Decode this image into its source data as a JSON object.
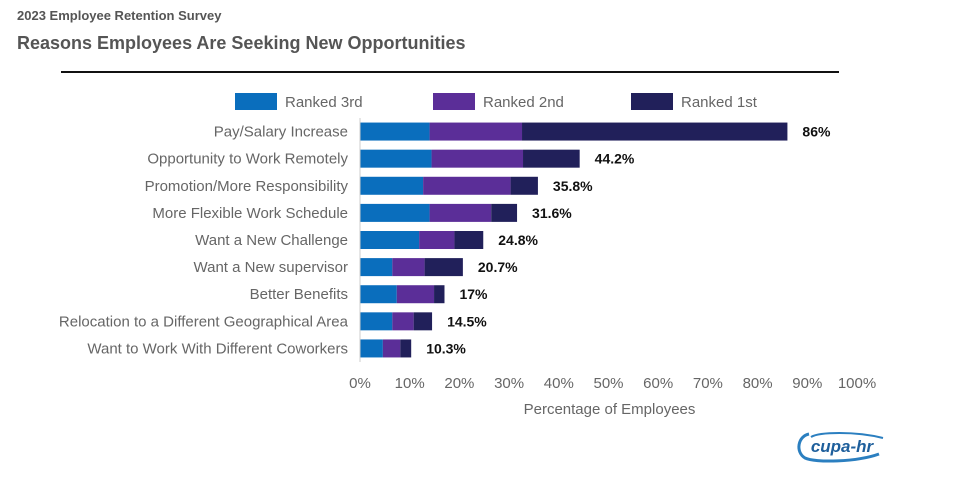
{
  "header": {
    "supertitle": "2023 Employee Retention Survey",
    "title": "Reasons Employees Are Seeking New Opportunities"
  },
  "logo": {
    "text": "cupa-hr",
    "icon": "cupa-hr-logo"
  },
  "colors": {
    "ranked3": "#0a6ebd",
    "ranked2": "#5b2e98",
    "ranked1": "#21205a",
    "axis": "#666666",
    "grid": "#e6e6e6"
  },
  "chart_data": {
    "type": "bar",
    "orientation": "horizontal",
    "stacked": true,
    "title": "Reasons Employees Are Seeking New Opportunities",
    "xlabel": "Percentage of Employees",
    "ylabel": "",
    "xlim": [
      0,
      100
    ],
    "x_ticks": [
      "0%",
      "10%",
      "20%",
      "30%",
      "40%",
      "50%",
      "60%",
      "70%",
      "80%",
      "90%",
      "100%"
    ],
    "legend_position": "top",
    "grid": false,
    "categories": [
      "Pay/Salary Increase",
      "Opportunity to Work Remotely",
      "Promotion/More Responsibility",
      "More Flexible Work Schedule",
      "Want a New Challenge",
      "Want a New supervisor",
      "Better Benefits",
      "Relocation to a Different Geographical Area",
      "Want to Work With Different Coworkers"
    ],
    "series": [
      {
        "name": "Ranked 3rd",
        "color": "#0a6ebd",
        "values": [
          14,
          14.4,
          12.7,
          14,
          11.9,
          6.5,
          7.4,
          6.5,
          4.6
        ]
      },
      {
        "name": "Ranked 2nd",
        "color": "#5b2e98",
        "values": [
          18.6,
          18.4,
          17.6,
          12.4,
          7.1,
          6.5,
          7.5,
          4.3,
          3.5
        ]
      },
      {
        "name": "Ranked 1st",
        "color": "#21205a",
        "values": [
          53.4,
          11.4,
          5.5,
          5.2,
          5.8,
          7.7,
          2.1,
          3.7,
          2.2
        ]
      }
    ],
    "totals": [
      86,
      44.2,
      35.8,
      31.6,
      24.8,
      20.7,
      17,
      14.5,
      10.3
    ],
    "total_labels": [
      "86%",
      "44.2%",
      "35.8%",
      "31.6%",
      "24.8%",
      "20.7%",
      "17%",
      "14.5%",
      "10.3%"
    ]
  }
}
